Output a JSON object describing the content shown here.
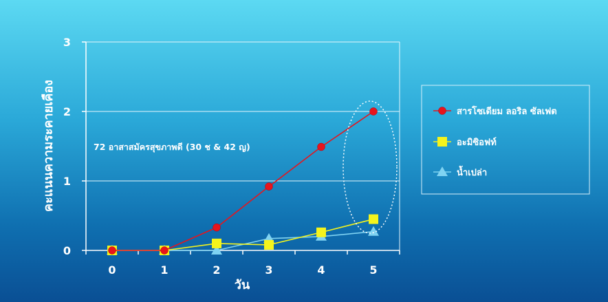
{
  "chart_data": {
    "type": "line",
    "xlabel": "วัน",
    "ylabel": "คะแนนความระคายเคือง",
    "x": [
      0,
      1,
      2,
      3,
      4,
      5
    ],
    "xlim": [
      -0.5,
      5.5
    ],
    "ylim": [
      0,
      3
    ],
    "yticks": [
      0,
      1,
      2,
      3
    ],
    "grid": true,
    "legend_position": "right",
    "annotation": "72 อาสาสมัครสุขภาพดี (30 ช & 42 ญ)",
    "series": [
      {
        "name": "สารโซเดียม ลอริล ซัลเฟต",
        "values": [
          0,
          0,
          0.33,
          0.92,
          1.49,
          2.0
        ],
        "color": "#e8141c",
        "marker": "circle"
      },
      {
        "name": "อะมิซิอฟท์",
        "values": [
          0,
          0,
          0.1,
          0.08,
          0.26,
          0.45
        ],
        "color": "#f4f41c",
        "marker": "square"
      },
      {
        "name": "น้ำเปล่า",
        "values": [
          0,
          0,
          0,
          0.17,
          0.2,
          0.27
        ],
        "color": "#7fd3f2",
        "marker": "triangle"
      }
    ]
  }
}
